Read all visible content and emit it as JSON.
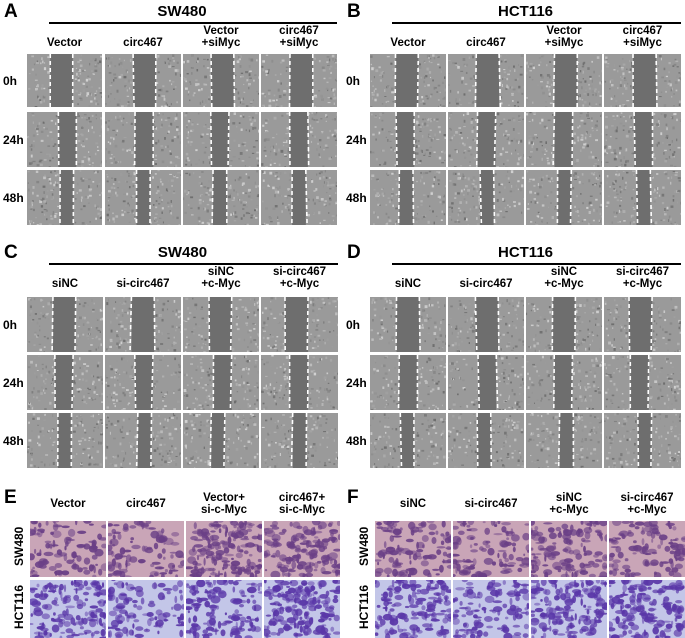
{
  "panels": {
    "A": {
      "letter": "A",
      "title": "SW480",
      "columns": [
        "Vector",
        "circ467",
        "Vector\n+siMyc",
        "circ467\n+siMyc"
      ],
      "rows": [
        "0h",
        "24h",
        "48h"
      ]
    },
    "B": {
      "letter": "B",
      "title": "HCT116",
      "columns": [
        "Vector",
        "circ467",
        "Vector\n+siMyc",
        "circ467\n+siMyc"
      ],
      "rows": [
        "0h",
        "24h",
        "48h"
      ]
    },
    "C": {
      "letter": "C",
      "title": "SW480",
      "columns": [
        "siNC",
        "si-circ467",
        "siNC\n+c-Myc",
        "si-circ467\n+c-Myc"
      ],
      "rows": [
        "0h",
        "24h",
        "48h"
      ]
    },
    "D": {
      "letter": "D",
      "title": "HCT116",
      "columns": [
        "siNC",
        "si-circ467",
        "siNC\n+c-Myc",
        "si-circ467\n+c-Myc"
      ],
      "rows": [
        "0h",
        "24h",
        "48h"
      ]
    },
    "E": {
      "letter": "E",
      "columns": [
        "Vector",
        "circ467",
        "Vector+\nsi-c-Myc",
        "circ467+\nsi-c-Myc"
      ],
      "rows": [
        "SW480",
        "HCT116"
      ]
    },
    "F": {
      "letter": "F",
      "columns": [
        "siNC",
        "si-circ467",
        "siNC\n+c-Myc",
        "si-circ467\n+c-Myc"
      ],
      "rows": [
        "SW480",
        "HCT116"
      ]
    }
  },
  "colors": {
    "wound_gray": "#6e6e6e",
    "cell_gray": "#9a9a9a",
    "dashed_line": "#ffffff",
    "sw480_stain_bg": "#c9a5b7",
    "sw480_stain_cells": "#6a3f86",
    "hct116_stain_bg": "#c3c6e8",
    "hct116_stain_cells": "#5a37a8"
  }
}
